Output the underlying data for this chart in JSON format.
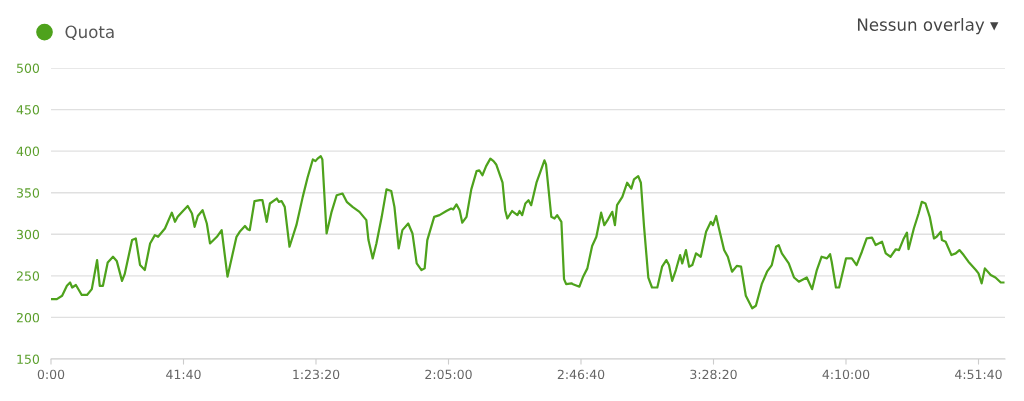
{
  "chart_data": {
    "type": "line",
    "x": [
      0,
      110,
      210,
      300,
      360,
      400,
      470,
      580,
      680,
      770,
      870,
      920,
      980,
      1070,
      1170,
      1240,
      1340,
      1390,
      1530,
      1600,
      1680,
      1770,
      1870,
      1960,
      2020,
      2150,
      2280,
      2340,
      2390,
      2490,
      2580,
      2660,
      2710,
      2770,
      2860,
      2940,
      3000,
      3130,
      3220,
      3330,
      3500,
      3560,
      3660,
      3710,
      3750,
      3840,
      3940,
      3990,
      4070,
      4130,
      4260,
      4300,
      4350,
      4410,
      4500,
      4630,
      4750,
      4840,
      4940,
      4990,
      5030,
      5090,
      5120,
      5200,
      5290,
      5390,
      5500,
      5580,
      5690,
      5820,
      5950,
      5990,
      6070,
      6140,
      6240,
      6330,
      6420,
      6480,
      6560,
      6630,
      6740,
      6820,
      6900,
      6990,
      7050,
      7100,
      7230,
      7330,
      7460,
      7550,
      7590,
      7650,
      7710,
      7760,
      7840,
      7930,
      8030,
      8080,
      8140,
      8210,
      8290,
      8350,
      8400,
      8520,
      8570,
      8610,
      8700,
      8800,
      8840,
      8890,
      8950,
      9010,
      9060,
      9160,
      9250,
      9310,
      9340,
      9440,
      9500,
      9550,
      9630,
      9680,
      9720,
      9820,
      9850,
      9970,
      10040,
      10120,
      10210,
      10290,
      10380,
      10440,
      10510,
      10590,
      10640,
      10680,
      10780,
      10870,
      10950,
      11000,
      11080,
      11130,
      11190,
      11270,
      11340,
      11440,
      11530,
      11610,
      11660,
      11720,
      11790,
      11870,
      11910,
      11980,
      12040,
      12100,
      12170,
      12260,
      12360,
      12450,
      12490,
      12550,
      12600,
      12700,
      12770,
      12850,
      12940,
      13020,
      13110,
      13230,
      13300,
      13410,
      13510,
      13600,
      13680,
      13730,
      13790,
      13920,
      14020,
      14110,
      14260,
      14360,
      14450,
      14540,
      14640,
      14700,
      14730,
      14810,
      14870,
      15000,
      15110,
      15200,
      15300,
      15390,
      15490,
      15560,
      15680,
      15750,
      15840,
      15940,
      16000,
      16090,
      16150,
      16180,
      16280,
      16370,
      16430,
      16500,
      16580,
      16660,
      16710,
      16790,
      16810,
      16880,
      16990,
      17070,
      17140,
      17220,
      17310,
      17450,
      17500,
      17560,
      17620,
      17730,
      17820,
      17920,
      17970
    ],
    "series": [
      {
        "name": "Quota",
        "color": "#4ea21c",
        "values": [
          222,
          222,
          226,
          238,
          242,
          236,
          239,
          227,
          227,
          234,
          269,
          238,
          238,
          266,
          273,
          268,
          244,
          252,
          293,
          295,
          263,
          257,
          289,
          299,
          297,
          307,
          326,
          315,
          321,
          328,
          334,
          325,
          309,
          322,
          329,
          313,
          289,
          297,
          305,
          249,
          297,
          303,
          310,
          306,
          305,
          340,
          341,
          341,
          315,
          337,
          343,
          339,
          340,
          333,
          285,
          311,
          345,
          368,
          390,
          388,
          391,
          394,
          390,
          301,
          326,
          347,
          349,
          339,
          333,
          327,
          317,
          293,
          271,
          289,
          321,
          354,
          352,
          333,
          283,
          305,
          313,
          301,
          265,
          257,
          259,
          293,
          321,
          323,
          328,
          331,
          330,
          336,
          329,
          314,
          321,
          354,
          376,
          377,
          371,
          382,
          391,
          388,
          384,
          362,
          329,
          319,
          328,
          323,
          328,
          323,
          337,
          341,
          335,
          362,
          378,
          389,
          384,
          321,
          319,
          323,
          315,
          246,
          240,
          241,
          240,
          237,
          249,
          259,
          286,
          297,
          326,
          311,
          318,
          327,
          311,
          335,
          345,
          362,
          355,
          366,
          370,
          362,
          309,
          248,
          236,
          236,
          261,
          269,
          263,
          244,
          257,
          275,
          265,
          281,
          261,
          263,
          277,
          273,
          303,
          315,
          311,
          322,
          308,
          281,
          273,
          255,
          262,
          261,
          226,
          211,
          214,
          240,
          255,
          263,
          285,
          287,
          277,
          265,
          248,
          243,
          248,
          234,
          257,
          273,
          271,
          276,
          267,
          236,
          236,
          271,
          271,
          263,
          279,
          295,
          296,
          287,
          291,
          277,
          273,
          282,
          281,
          295,
          302,
          282,
          307,
          325,
          339,
          337,
          321,
          295,
          297,
          303,
          293,
          291,
          275,
          277,
          281,
          275,
          267,
          257,
          253,
          241,
          259,
          251,
          248,
          242,
          242
        ]
      }
    ],
    "xlim": [
      0,
      18000
    ],
    "xticks": [
      {
        "value": 0,
        "label": "0:00"
      },
      {
        "value": 2500,
        "label": "41:40"
      },
      {
        "value": 5000,
        "label": "1:23:20"
      },
      {
        "value": 7500,
        "label": "2:05:00"
      },
      {
        "value": 10000,
        "label": "2:46:40"
      },
      {
        "value": 12500,
        "label": "3:28:20"
      },
      {
        "value": 15000,
        "label": "4:10:00"
      },
      {
        "value": 17500,
        "label": "4:51:40"
      }
    ],
    "ylim": [
      150,
      500
    ],
    "yticks": [
      150,
      200,
      250,
      300,
      350,
      400,
      450,
      500
    ],
    "grid": "y",
    "legend": "top left",
    "marker": "none",
    "line_style": "solid",
    "annotations": [
      "Nessun overlay ▾"
    ]
  }
}
